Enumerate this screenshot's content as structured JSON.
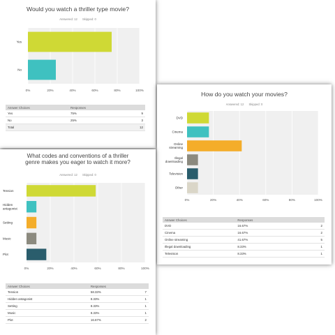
{
  "charts": [
    {
      "title": "Would you watch a thriller type movie?",
      "answered_label": "Answered: 12",
      "skipped_label": "Skipped: 0",
      "table_header": [
        "Answer Choices",
        "Responses"
      ],
      "rows": [
        {
          "choice": "Yes",
          "pct": "75%",
          "count": "9"
        },
        {
          "choice": "No",
          "pct": "25%",
          "count": "3"
        }
      ],
      "total": {
        "label": "Total",
        "count": "12"
      }
    },
    {
      "title": "How do you watch your movies?",
      "answered_label": "Answered: 12",
      "skipped_label": "Skipped: 0",
      "table_header": [
        "Answer Choices",
        "Responses"
      ],
      "rows": [
        {
          "choice": "DVD",
          "pct": "16.67%",
          "count": "2"
        },
        {
          "choice": "Cinema",
          "pct": "16.67%",
          "count": "2"
        },
        {
          "choice": "Online streaming",
          "pct": "41.67%",
          "count": "5"
        },
        {
          "choice": "Illegal downloading",
          "pct": "8.33%",
          "count": "1"
        },
        {
          "choice": "Television",
          "pct": "8.33%",
          "count": "1"
        }
      ]
    },
    {
      "title_lines": [
        "What codes and conventions of a thriller",
        "genre makes you eager to watch it more?"
      ],
      "answered_label": "Answered: 12",
      "skipped_label": "Skipped: 0",
      "table_header": [
        "Answer Choices",
        "Responses"
      ],
      "rows": [
        {
          "choice": "Tension",
          "pct": "58.33%",
          "count": "7"
        },
        {
          "choice": "Hidden antagonist",
          "pct": "8.33%",
          "count": "1"
        },
        {
          "choice": "Setting",
          "pct": "8.33%",
          "count": "1"
        },
        {
          "choice": "Music",
          "pct": "8.33%",
          "count": "1"
        },
        {
          "choice": "Plot",
          "pct": "16.67%",
          "count": "2"
        }
      ]
    }
  ],
  "chart_data": [
    {
      "type": "bar",
      "orientation": "horizontal",
      "title": "Would you watch a thriller type movie?",
      "categories": [
        "Yes",
        "No"
      ],
      "values": [
        75,
        25
      ],
      "colors": [
        "#cfd935",
        "#3fc1c0"
      ],
      "xlim": [
        0,
        100
      ],
      "xticks": [
        "0%",
        "20%",
        "40%",
        "60%",
        "80%",
        "100%"
      ],
      "grid": true
    },
    {
      "type": "bar",
      "orientation": "horizontal",
      "title": "How do you watch your movies?",
      "categories": [
        "DVD",
        "Cinema",
        "Online streaming",
        "Illegal downloading",
        "Television",
        "Other"
      ],
      "category_lines": [
        [
          "DVD"
        ],
        [
          "Cinema"
        ],
        [
          "Online",
          "streaming"
        ],
        [
          "Illegal",
          "downloading"
        ],
        [
          "Television"
        ],
        [
          "Other"
        ]
      ],
      "values": [
        16.67,
        16.67,
        41.67,
        8.33,
        8.33,
        8.33
      ],
      "colors": [
        "#cfd935",
        "#3fc1c0",
        "#f4ad2a",
        "#8c8a7f",
        "#2a5d6c",
        "#dad6c8"
      ],
      "xlim": [
        0,
        100
      ],
      "xticks": [
        "0%",
        "20%",
        "40%",
        "60%",
        "80%",
        "100%"
      ],
      "grid": true
    },
    {
      "type": "bar",
      "orientation": "horizontal",
      "title": "What codes and conventions of a thriller genre makes you eager to watch it more?",
      "categories": [
        "Tension",
        "Hidden antagonist",
        "Setting",
        "Music",
        "Plot"
      ],
      "category_lines": [
        [
          "Tension"
        ],
        [
          "Hidden",
          "antagonist"
        ],
        [
          "Setting"
        ],
        [
          "Music"
        ],
        [
          "Plot"
        ]
      ],
      "values": [
        58.33,
        8.33,
        8.33,
        8.33,
        16.67
      ],
      "colors": [
        "#cfd935",
        "#3fc1c0",
        "#f4ad2a",
        "#8c8a7f",
        "#2a5d6c"
      ],
      "xlim": [
        0,
        100
      ],
      "xticks": [
        "0%",
        "20%",
        "40%",
        "60%",
        "80%",
        "100%"
      ],
      "grid": true
    }
  ]
}
